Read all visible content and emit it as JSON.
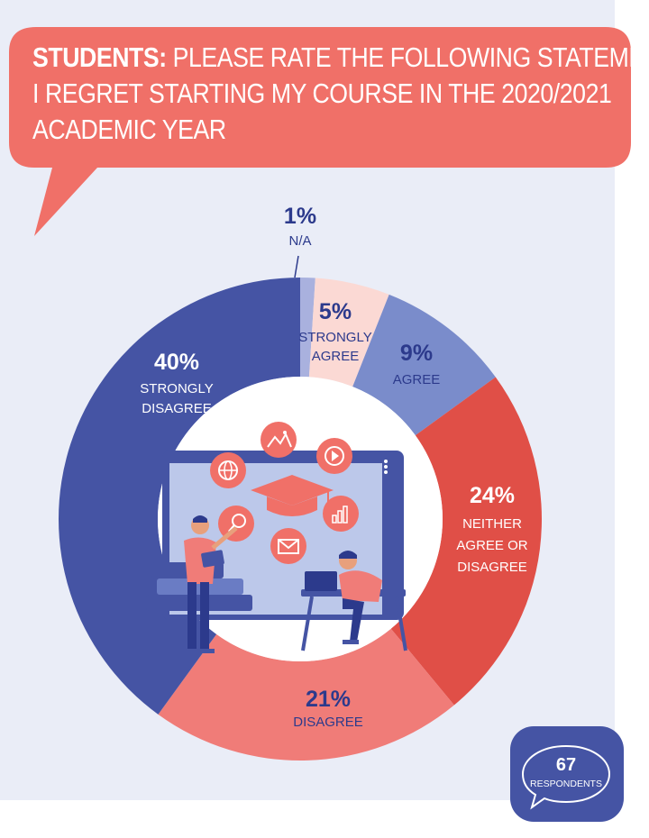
{
  "header": {
    "title_bold": "STUDENTS:",
    "title_line1": "PLEASE RATE THE FOLLOWING STATEMENT:",
    "title_line2": "I REGRET STARTING MY COURSE IN THE 2020/2021",
    "title_line3": "ACADEMIC YEAR"
  },
  "chart_data": {
    "type": "pie",
    "variant": "donut",
    "start_angle_deg": 0,
    "direction": "clockwise",
    "slices": [
      {
        "label": "N/A",
        "value": 1,
        "percent_label": "1%",
        "color": "#a9b1de"
      },
      {
        "label": "STRONGLY AGREE",
        "value": 5,
        "percent_label": "5%",
        "color": "#fbd9d4"
      },
      {
        "label": "AGREE",
        "value": 9,
        "percent_label": "9%",
        "color": "#7a8ccb"
      },
      {
        "label": "NEITHER AGREE OR DISAGREE",
        "value": 24,
        "percent_label": "24%",
        "color": "#e04f47"
      },
      {
        "label": "DISAGREE",
        "value": 21,
        "percent_label": "21%",
        "color": "#f07c78"
      },
      {
        "label": "STRONGLY DISAGREE",
        "value": 40,
        "percent_label": "40%",
        "color": "#4554a4"
      }
    ]
  },
  "labels": {
    "na_pct": "1%",
    "na_cat": "N/A",
    "sa_pct": "5%",
    "sa_cat1": "STRONGLY",
    "sa_cat2": "AGREE",
    "ag_pct": "9%",
    "ag_cat": "AGREE",
    "ne_pct": "24%",
    "ne_cat1": "NEITHER",
    "ne_cat2": "AGREE OR",
    "ne_cat3": "DISAGREE",
    "di_pct": "21%",
    "di_cat": "DISAGREE",
    "sd_pct": "40%",
    "sd_cat1": "STRONGLY",
    "sd_cat2": "DISAGREE"
  },
  "badge": {
    "count": "67",
    "label": "RESPONDENTS"
  },
  "colors": {
    "bubble": "#f07068",
    "label_dark": "#2c3a8c",
    "panel": "#eaedf7",
    "badge": "#4554a4"
  },
  "icons": [
    "graduation-cap-icon",
    "globe-icon",
    "photo-icon",
    "play-icon",
    "bar-chart-icon",
    "mail-icon",
    "magnifier-icon"
  ]
}
